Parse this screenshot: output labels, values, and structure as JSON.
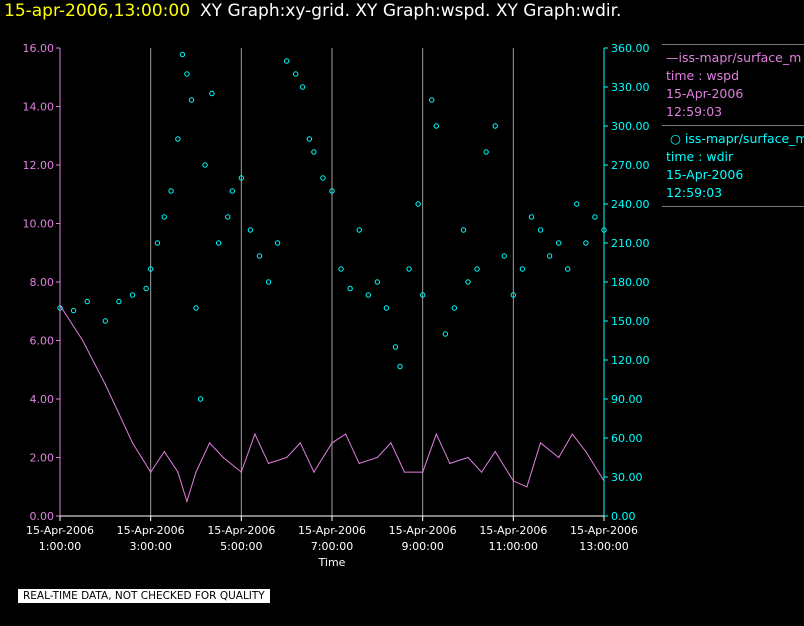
{
  "header": {
    "timestamp": "15-apr-2006,13:00:00",
    "graphs": "XY Graph:xy-grid.  XY Graph:wspd.  XY Graph:wdir."
  },
  "legend": {
    "wspd": {
      "line1": "iss-mapr/surface_m",
      "line2": "time : wspd",
      "line3": "15-Apr-2006",
      "line4": "12:59:03",
      "color": "#e080e0"
    },
    "wdir": {
      "line1": "iss-mapr/surface_m",
      "line2": "time : wdir",
      "line3": "15-Apr-2006",
      "line4": "12:59:03",
      "color": "#00ffff"
    }
  },
  "footer": {
    "disclaimer": "REAL-TIME DATA, NOT CHECKED FOR QUALITY"
  },
  "chart_data": {
    "type": "line",
    "xlabel": "Time",
    "x_ticks": [
      {
        "hour": 1,
        "date": "15-Apr-2006",
        "time": "1:00:00"
      },
      {
        "hour": 3,
        "date": "15-Apr-2006",
        "time": "3:00:00"
      },
      {
        "hour": 5,
        "date": "15-Apr-2006",
        "time": "5:00:00"
      },
      {
        "hour": 7,
        "date": "15-Apr-2006",
        "time": "7:00:00"
      },
      {
        "hour": 9,
        "date": "15-Apr-2006",
        "time": "9:00:00"
      },
      {
        "hour": 11,
        "date": "15-Apr-2006",
        "time": "11:00:00"
      },
      {
        "hour": 13,
        "date": "15-Apr-2006",
        "time": "13:00:00"
      }
    ],
    "xlim": [
      1,
      13
    ],
    "vertical_grid_hours": [
      3,
      5,
      7,
      9,
      11,
      13
    ],
    "y_left": {
      "ylim": [
        0,
        16
      ],
      "ticks": [
        "0.00",
        "2.00",
        "4.00",
        "6.00",
        "8.00",
        "10.00",
        "12.00",
        "14.00",
        "16.00"
      ],
      "color": "#e080e0"
    },
    "y_right": {
      "ylim": [
        0,
        360
      ],
      "ticks": [
        "0.00",
        "30.00",
        "60.00",
        "90.00",
        "120.00",
        "150.00",
        "180.00",
        "210.00",
        "240.00",
        "270.00",
        "300.00",
        "330.00",
        "360.00"
      ],
      "color": "#00ffff"
    },
    "series": [
      {
        "name": "wspd",
        "style": "line",
        "axis": "left",
        "color": "#e080e0",
        "x": [
          1.0,
          1.5,
          2.0,
          2.3,
          2.6,
          2.8,
          3.0,
          3.3,
          3.6,
          3.8,
          4.0,
          4.3,
          4.6,
          5.0,
          5.3,
          5.6,
          6.0,
          6.3,
          6.6,
          7.0,
          7.3,
          7.6,
          8.0,
          8.3,
          8.6,
          9.0,
          9.3,
          9.6,
          10.0,
          10.3,
          10.6,
          11.0,
          11.3,
          11.6,
          12.0,
          12.3,
          12.6,
          13.0
        ],
        "values": [
          7.2,
          6.0,
          4.5,
          3.5,
          2.5,
          2.0,
          1.5,
          2.2,
          1.5,
          0.5,
          1.5,
          2.5,
          2.0,
          1.5,
          2.8,
          1.8,
          2.0,
          2.5,
          1.5,
          2.5,
          2.8,
          1.8,
          2.0,
          2.5,
          1.5,
          1.5,
          2.8,
          1.8,
          2.0,
          1.5,
          2.2,
          1.2,
          1.0,
          2.5,
          2.0,
          2.8,
          2.2,
          1.2
        ]
      },
      {
        "name": "wdir",
        "style": "points",
        "axis": "right",
        "color": "#00ffff",
        "x": [
          1.0,
          1.3,
          1.6,
          2.0,
          2.3,
          2.6,
          2.9,
          3.0,
          3.15,
          3.3,
          3.45,
          3.6,
          3.7,
          3.8,
          3.9,
          4.0,
          4.1,
          4.2,
          4.35,
          4.5,
          4.7,
          4.8,
          5.0,
          5.2,
          5.4,
          5.6,
          5.8,
          6.0,
          6.2,
          6.35,
          6.5,
          6.6,
          6.8,
          7.0,
          7.2,
          7.4,
          7.6,
          7.8,
          8.0,
          8.2,
          8.4,
          8.5,
          8.7,
          8.9,
          9.0,
          9.2,
          9.3,
          9.5,
          9.7,
          9.9,
          10.0,
          10.2,
          10.4,
          10.6,
          10.8,
          11.0,
          11.2,
          11.4,
          11.6,
          11.8,
          12.0,
          12.2,
          12.4,
          12.6,
          12.8,
          13.0
        ],
        "values": [
          160,
          158,
          165,
          150,
          165,
          170,
          175,
          190,
          210,
          230,
          250,
          290,
          355,
          340,
          320,
          160,
          90,
          270,
          325,
          210,
          230,
          250,
          260,
          220,
          200,
          180,
          210,
          350,
          340,
          330,
          290,
          280,
          260,
          250,
          190,
          175,
          220,
          170,
          180,
          160,
          130,
          115,
          190,
          240,
          170,
          320,
          300,
          140,
          160,
          220,
          180,
          190,
          280,
          300,
          200,
          170,
          190,
          230,
          220,
          200,
          210,
          190,
          240,
          210,
          230,
          220
        ]
      }
    ]
  }
}
